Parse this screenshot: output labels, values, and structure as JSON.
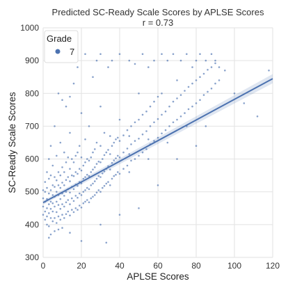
{
  "chart_data": {
    "type": "scatter",
    "title": "Predicted SC-Ready Scale Scores by APLSE Scores",
    "subtitle": "r = 0.73",
    "xlabel": "APLSE Scores",
    "ylabel": "SC-Ready Scale Scores",
    "xlim": [
      0,
      120
    ],
    "ylim": [
      300,
      1000
    ],
    "x_ticks": [
      0,
      20,
      40,
      60,
      80,
      100,
      120
    ],
    "y_ticks": [
      300,
      400,
      500,
      600,
      700,
      800,
      900,
      1000
    ],
    "grid": true,
    "legend": {
      "title": "Grade",
      "placement": "top-left",
      "entries": [
        "7"
      ]
    },
    "series": [
      {
        "name": "7",
        "color": "#4c72b0",
        "points": [
          [
            0,
            430
          ],
          [
            0,
            455
          ],
          [
            0,
            480
          ],
          [
            0,
            505
          ],
          [
            1,
            415
          ],
          [
            1,
            440
          ],
          [
            1,
            470
          ],
          [
            1,
            500
          ],
          [
            1,
            530
          ],
          [
            2,
            400
          ],
          [
            2,
            425
          ],
          [
            2,
            450
          ],
          [
            2,
            478
          ],
          [
            2,
            512
          ],
          [
            2,
            560
          ],
          [
            3,
            395
          ],
          [
            3,
            435
          ],
          [
            3,
            462
          ],
          [
            3,
            495
          ],
          [
            3,
            540
          ],
          [
            3,
            600
          ],
          [
            4,
            420
          ],
          [
            4,
            448
          ],
          [
            4,
            470
          ],
          [
            4,
            505
          ],
          [
            4,
            550
          ],
          [
            4,
            640
          ],
          [
            5,
            410
          ],
          [
            5,
            440
          ],
          [
            5,
            465
          ],
          [
            5,
            490
          ],
          [
            5,
            520
          ],
          [
            5,
            580
          ],
          [
            6,
            420
          ],
          [
            6,
            455
          ],
          [
            6,
            485
          ],
          [
            6,
            515
          ],
          [
            6,
            545
          ],
          [
            6,
            700
          ],
          [
            7,
            405
          ],
          [
            7,
            438
          ],
          [
            7,
            470
          ],
          [
            7,
            500
          ],
          [
            7,
            535
          ],
          [
            7,
            610
          ],
          [
            8,
            425
          ],
          [
            8,
            460
          ],
          [
            8,
            490
          ],
          [
            8,
            520
          ],
          [
            8,
            560
          ],
          [
            9,
            415
          ],
          [
            9,
            448
          ],
          [
            9,
            478
          ],
          [
            9,
            512
          ],
          [
            9,
            550
          ],
          [
            9,
            650
          ],
          [
            10,
            430
          ],
          [
            10,
            462
          ],
          [
            10,
            495
          ],
          [
            10,
            528
          ],
          [
            10,
            575
          ],
          [
            11,
            420
          ],
          [
            11,
            455
          ],
          [
            11,
            488
          ],
          [
            11,
            520
          ],
          [
            11,
            560
          ],
          [
            11,
            620
          ],
          [
            12,
            432
          ],
          [
            12,
            468
          ],
          [
            12,
            500
          ],
          [
            12,
            536
          ],
          [
            12,
            590
          ],
          [
            13,
            440
          ],
          [
            13,
            475
          ],
          [
            13,
            508
          ],
          [
            13,
            545
          ],
          [
            13,
            605
          ],
          [
            14,
            428
          ],
          [
            14,
            462
          ],
          [
            14,
            498
          ],
          [
            14,
            532
          ],
          [
            14,
            570
          ],
          [
            14,
            680
          ],
          [
            15,
            445
          ],
          [
            15,
            480
          ],
          [
            15,
            515
          ],
          [
            15,
            550
          ],
          [
            15,
            600
          ],
          [
            16,
            438
          ],
          [
            16,
            472
          ],
          [
            16,
            508
          ],
          [
            16,
            548
          ],
          [
            16,
            590
          ],
          [
            17,
            450
          ],
          [
            17,
            488
          ],
          [
            17,
            522
          ],
          [
            17,
            560
          ],
          [
            17,
            610
          ],
          [
            18,
            445
          ],
          [
            18,
            482
          ],
          [
            18,
            518
          ],
          [
            18,
            555
          ],
          [
            18,
            620
          ],
          [
            19,
            458
          ],
          [
            19,
            495
          ],
          [
            19,
            530
          ],
          [
            19,
            570
          ],
          [
            19,
            640
          ],
          [
            20,
            452
          ],
          [
            20,
            490
          ],
          [
            20,
            526
          ],
          [
            20,
            565
          ],
          [
            20,
            605
          ],
          [
            20,
            740
          ],
          [
            21,
            465
          ],
          [
            21,
            500
          ],
          [
            21,
            540
          ],
          [
            21,
            580
          ],
          [
            22,
            470
          ],
          [
            22,
            505
          ],
          [
            22,
            545
          ],
          [
            22,
            590
          ],
          [
            22,
            660
          ],
          [
            23,
            475
          ],
          [
            23,
            512
          ],
          [
            23,
            552
          ],
          [
            23,
            600
          ],
          [
            24,
            468
          ],
          [
            24,
            508
          ],
          [
            24,
            548
          ],
          [
            24,
            595
          ],
          [
            24,
            700
          ],
          [
            25,
            480
          ],
          [
            25,
            520
          ],
          [
            25,
            560
          ],
          [
            25,
            605
          ],
          [
            26,
            485
          ],
          [
            26,
            525
          ],
          [
            26,
            568
          ],
          [
            26,
            620
          ],
          [
            27,
            490
          ],
          [
            27,
            532
          ],
          [
            27,
            575
          ],
          [
            27,
            630
          ],
          [
            28,
            498
          ],
          [
            28,
            540
          ],
          [
            28,
            585
          ],
          [
            28,
            650
          ],
          [
            29,
            505
          ],
          [
            29,
            548
          ],
          [
            29,
            592
          ],
          [
            30,
            500
          ],
          [
            30,
            545
          ],
          [
            30,
            590
          ],
          [
            30,
            640
          ],
          [
            30,
            760
          ],
          [
            31,
            512
          ],
          [
            31,
            556
          ],
          [
            31,
            600
          ],
          [
            32,
            518
          ],
          [
            32,
            562
          ],
          [
            32,
            612
          ],
          [
            32,
            680
          ],
          [
            33,
            525
          ],
          [
            33,
            570
          ],
          [
            33,
            620
          ],
          [
            34,
            530
          ],
          [
            34,
            578
          ],
          [
            34,
            628
          ],
          [
            35,
            520
          ],
          [
            35,
            568
          ],
          [
            35,
            615
          ],
          [
            35,
            670
          ],
          [
            36,
            540
          ],
          [
            36,
            588
          ],
          [
            36,
            640
          ],
          [
            37,
            548
          ],
          [
            37,
            596
          ],
          [
            37,
            650
          ],
          [
            38,
            552
          ],
          [
            38,
            602
          ],
          [
            38,
            660
          ],
          [
            39,
            560
          ],
          [
            39,
            610
          ],
          [
            39,
            665
          ],
          [
            40,
            555
          ],
          [
            40,
            605
          ],
          [
            40,
            655
          ],
          [
            40,
            720
          ],
          [
            42,
            570
          ],
          [
            42,
            620
          ],
          [
            42,
            672
          ],
          [
            44,
            580
          ],
          [
            44,
            632
          ],
          [
            44,
            688
          ],
          [
            45,
            560
          ],
          [
            45,
            615
          ],
          [
            45,
            670
          ],
          [
            46,
            595
          ],
          [
            46,
            645
          ],
          [
            46,
            700
          ],
          [
            48,
            600
          ],
          [
            48,
            655
          ],
          [
            48,
            712
          ],
          [
            50,
            610
          ],
          [
            50,
            662
          ],
          [
            50,
            720
          ],
          [
            50,
            800
          ],
          [
            52,
            620
          ],
          [
            52,
            675
          ],
          [
            52,
            735
          ],
          [
            54,
            630
          ],
          [
            54,
            685
          ],
          [
            54,
            745
          ],
          [
            55,
            600
          ],
          [
            55,
            660
          ],
          [
            56,
            645
          ],
          [
            56,
            700
          ],
          [
            56,
            760
          ],
          [
            58,
            655
          ],
          [
            58,
            712
          ],
          [
            58,
            775
          ],
          [
            60,
            665
          ],
          [
            60,
            722
          ],
          [
            60,
            790
          ],
          [
            62,
            678
          ],
          [
            62,
            735
          ],
          [
            62,
            800
          ],
          [
            64,
            688
          ],
          [
            64,
            745
          ],
          [
            65,
            650
          ],
          [
            66,
            700
          ],
          [
            66,
            760
          ],
          [
            68,
            712
          ],
          [
            68,
            775
          ],
          [
            70,
            720
          ],
          [
            70,
            785
          ],
          [
            70,
            840
          ],
          [
            72,
            730
          ],
          [
            72,
            795
          ],
          [
            74,
            740
          ],
          [
            74,
            808
          ],
          [
            75,
            700
          ],
          [
            76,
            752
          ],
          [
            76,
            820
          ],
          [
            78,
            760
          ],
          [
            78,
            830
          ],
          [
            80,
            770
          ],
          [
            80,
            840
          ],
          [
            82,
            780
          ],
          [
            82,
            850
          ],
          [
            84,
            795
          ],
          [
            84,
            860
          ],
          [
            86,
            805
          ],
          [
            86,
            872
          ],
          [
            88,
            815
          ],
          [
            88,
            880
          ],
          [
            90,
            830
          ],
          [
            90,
            892
          ],
          [
            92,
            840
          ],
          [
            95,
            870
          ],
          [
            2,
            920
          ],
          [
            8,
            800
          ],
          [
            10,
            780
          ],
          [
            12,
            760
          ],
          [
            14,
            790
          ],
          [
            16,
            830
          ],
          [
            18,
            880
          ],
          [
            22,
            920
          ],
          [
            26,
            850
          ],
          [
            28,
            900
          ],
          [
            30,
            920
          ],
          [
            34,
            880
          ],
          [
            36,
            900
          ],
          [
            40,
            920
          ],
          [
            45,
            900
          ],
          [
            48,
            890
          ],
          [
            52,
            920
          ],
          [
            55,
            880
          ],
          [
            58,
            900
          ],
          [
            62,
            920
          ],
          [
            65,
            900
          ],
          [
            68,
            920
          ],
          [
            72,
            900
          ],
          [
            75,
            920
          ],
          [
            78,
            880
          ],
          [
            80,
            900
          ],
          [
            82,
            920
          ],
          [
            85,
            900
          ],
          [
            88,
            920
          ],
          [
            90,
            900
          ],
          [
            92,
            880
          ],
          [
            100,
            800
          ],
          [
            105,
            770
          ],
          [
            112,
            730
          ],
          [
            118,
            870
          ],
          [
            4,
            370
          ],
          [
            6,
            380
          ],
          [
            8,
            385
          ],
          [
            10,
            390
          ],
          [
            3,
            360
          ],
          [
            20,
            350
          ],
          [
            33,
            345
          ],
          [
            14,
            375
          ],
          [
            30,
            400
          ],
          [
            40,
            430
          ],
          [
            50,
            450
          ],
          [
            60,
            520
          ],
          [
            70,
            600
          ],
          [
            80,
            640
          ],
          [
            85,
            700
          ]
        ]
      }
    ],
    "regression": {
      "intercept": 467,
      "slope": 3.15,
      "x_range": [
        0,
        120
      ]
    }
  }
}
